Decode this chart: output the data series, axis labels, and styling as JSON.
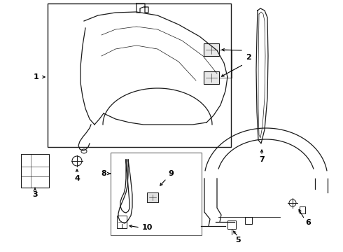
{
  "bg_color": "#ffffff",
  "line_color": "#1a1a1a",
  "label_color": "#000000",
  "figsize": [
    4.9,
    3.6
  ],
  "dpi": 100
}
